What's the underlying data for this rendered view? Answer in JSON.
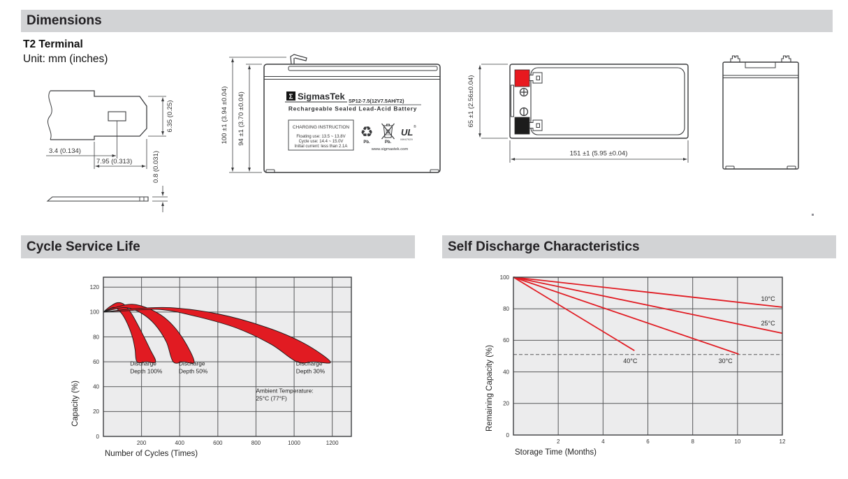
{
  "page": {
    "dimensions_title": "Dimensions",
    "terminal_type": "T2 Terminal",
    "unit_note": "Unit: mm (inches)",
    "cycle_title": "Cycle Service Life",
    "self_discharge_title": "Self Discharge Characteristics"
  },
  "drawings": {
    "terminal_detail": {
      "dim_offset": "3.4 (0.134)",
      "dim_width": "7.95 (0.313)",
      "dim_blade": "6.35 (0.25)",
      "dim_thickness": "0.8 (0.031)"
    },
    "front_view": {
      "dim_total_height": "100 ±1 (3.94 ±0.04)",
      "dim_case_height": "94 ±1 (3.70 ±0.04)",
      "label": {
        "logo_sigma": "Σ",
        "brand": "SigmasTek",
        "model": "SP12-7.5(12V7.5AH/T2)",
        "battery_type": "Rechargeable Sealed Lead-Acid Battery",
        "charging_title": "CHARGING INSTRUCTION",
        "charging_lines": [
          "Floating use: 13.5 ~ 13.8V",
          "Cycle use: 14.4 ~ 15.0V",
          "Initial current: less than 2.1A"
        ],
        "recycle_glyph": "♻",
        "recycle_pb": "Pb.",
        "bin_pb": "Pb.",
        "ul_mark": "UL",
        "ul_reg": "®",
        "ul_code": "MH47929",
        "website": "www.sigmastek.com"
      }
    },
    "top_view": {
      "dim_height": "65 ±1 (2.56±0.04)",
      "dim_length": "151 ±1 (5.95 ±0.04)"
    }
  },
  "chart_data": [
    {
      "type": "area",
      "title": "Cycle Service Life",
      "xlabel": "Number of Cycles (Times)",
      "ylabel": "Capacity (%)",
      "xlim": [
        0,
        1300
      ],
      "ylim": [
        0,
        128
      ],
      "xticks": [
        200,
        400,
        600,
        800,
        1000,
        1200
      ],
      "yticks": [
        0,
        20,
        40,
        60,
        80,
        100,
        120
      ],
      "grid": true,
      "legend_position": "none",
      "band_color": "#e11b22",
      "bands": [
        {
          "name": "Discharge Depth 100%",
          "upper": [
            [
              0,
              100
            ],
            [
              35,
              104.5
            ],
            [
              73,
              107.5
            ],
            [
              110,
              106
            ],
            [
              150,
              98
            ],
            [
              200,
              84
            ],
            [
              245,
              70
            ],
            [
              274,
              60
            ]
          ],
          "lower": [
            [
              0,
              100
            ],
            [
              30,
              102.5
            ],
            [
              60,
              103.5
            ],
            [
              95,
              99
            ],
            [
              125,
              91
            ],
            [
              152,
              80
            ],
            [
              166,
              70
            ],
            [
              176,
              60
            ]
          ]
        },
        {
          "name": "Discharge Depth 50%",
          "upper": [
            [
              0,
              100
            ],
            [
              60,
              103.5
            ],
            [
              150,
              106.3
            ],
            [
              250,
              102
            ],
            [
              340,
              93
            ],
            [
              420,
              78
            ],
            [
              476,
              60
            ]
          ],
          "lower": [
            [
              0,
              100
            ],
            [
              50,
              102
            ],
            [
              120,
              103.5
            ],
            [
              200,
              99
            ],
            [
              270,
              90
            ],
            [
              330,
              76
            ],
            [
              366,
              60
            ]
          ]
        },
        {
          "name": "Discharge Depth 30%",
          "upper": [
            [
              0,
              100
            ],
            [
              150,
              102.5
            ],
            [
              350,
              103.5
            ],
            [
              600,
              98.5
            ],
            [
              850,
              88
            ],
            [
              1050,
              75
            ],
            [
              1190,
              60
            ]
          ],
          "lower": [
            [
              0,
              100
            ],
            [
              120,
              101
            ],
            [
              300,
              102
            ],
            [
              500,
              96
            ],
            [
              700,
              87
            ],
            [
              880,
              74
            ],
            [
              1014,
              60
            ]
          ]
        }
      ],
      "annotations": [
        {
          "lines": [
            "Discharge",
            "Depth 100%"
          ],
          "x": 140,
          "y": 57
        },
        {
          "lines": [
            "Discharge",
            "Depth 50%"
          ],
          "x": 395,
          "y": 57
        },
        {
          "lines": [
            "Discharge",
            "Depth 30%"
          ],
          "x": 1010,
          "y": 57
        },
        {
          "lines": [
            "Ambient Temperature:",
            "25°C (77°F)"
          ],
          "x": 800,
          "y": 35
        }
      ]
    },
    {
      "type": "line",
      "title": "Self Discharge Characteristics",
      "xlabel": "Storage Time (Months)",
      "ylabel": "Remaining Capacity (%)",
      "xlim": [
        0,
        12
      ],
      "ylim": [
        0,
        100
      ],
      "xticks": [
        2,
        4,
        6,
        8,
        10,
        12
      ],
      "yticks": [
        0,
        20,
        40,
        60,
        80,
        100
      ],
      "grid": true,
      "legend_position": "inline-labels",
      "line_color": "#e11b22",
      "series": [
        {
          "name": "10°C",
          "points": [
            [
              0,
              100
            ],
            [
              12,
              81
            ]
          ],
          "label_at": [
            11.05,
            85
          ]
        },
        {
          "name": "25°C",
          "points": [
            [
              0,
              100
            ],
            [
              12,
              64.5
            ]
          ],
          "label_at": [
            11.05,
            69.5
          ]
        },
        {
          "name": "30°C",
          "points": [
            [
              0,
              100
            ],
            [
              10.05,
              51.3
            ]
          ],
          "label_at": [
            9.15,
            45.5
          ]
        },
        {
          "name": "40°C",
          "points": [
            [
              0,
              100
            ],
            [
              5.4,
              53.5
            ]
          ],
          "label_at": [
            4.9,
            45.5
          ]
        }
      ],
      "dashed_y": 51
    }
  ]
}
